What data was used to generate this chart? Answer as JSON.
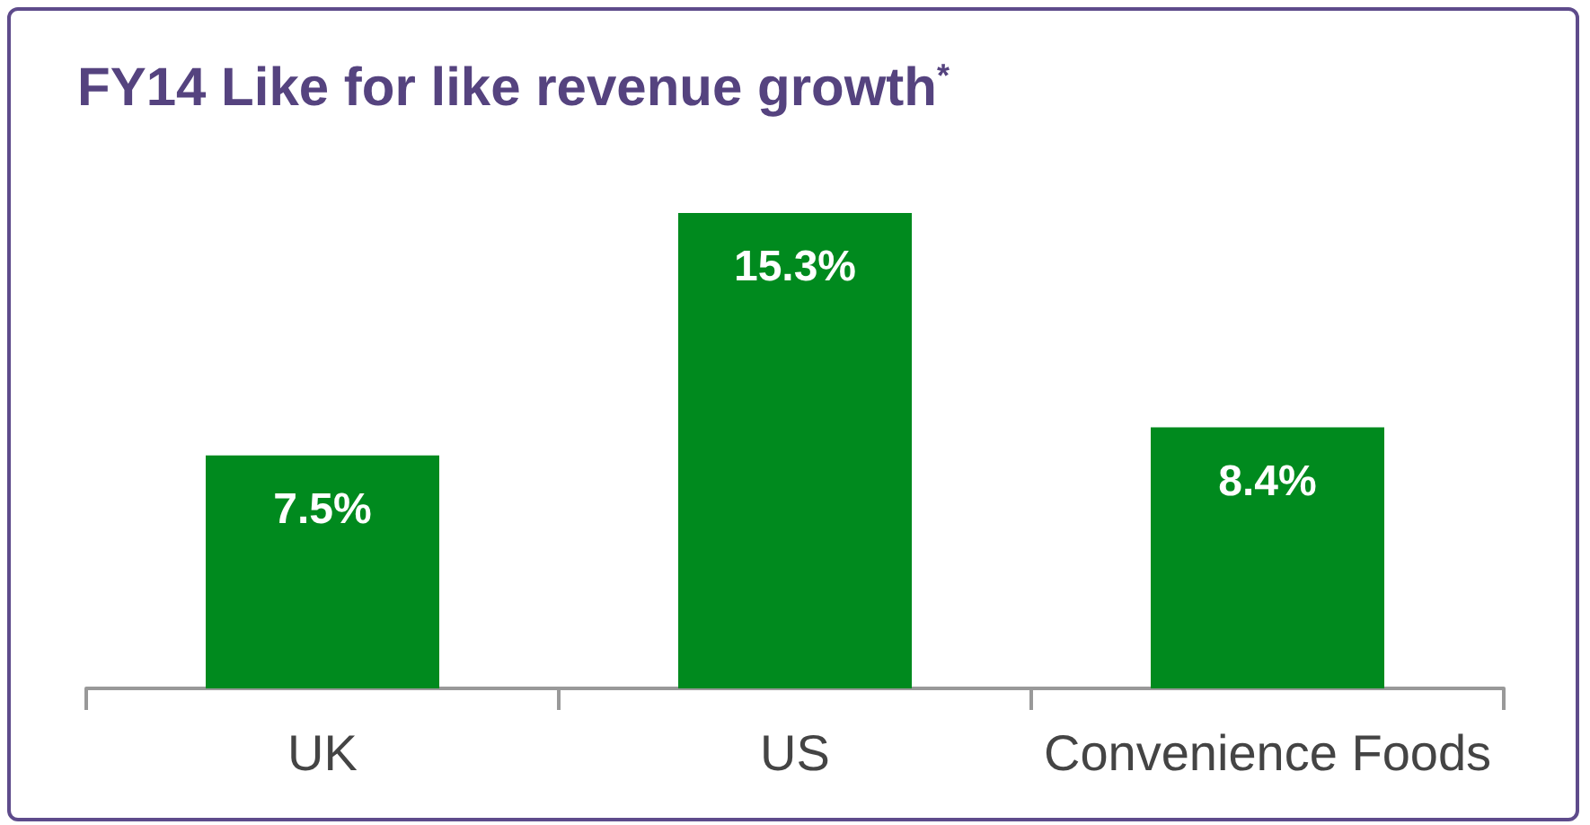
{
  "chart_data": {
    "type": "bar",
    "title": "FY14 Like for like revenue growth$^{*}$",
    "categories": [
      "UK",
      "US",
      "Convenience Foods"
    ],
    "values": [
      7.5,
      15.3,
      8.4
    ],
    "color": "#008a1e",
    "value_labels": [
      "7.5%",
      "15.3%",
      "8.4%"
    ]
  }
}
